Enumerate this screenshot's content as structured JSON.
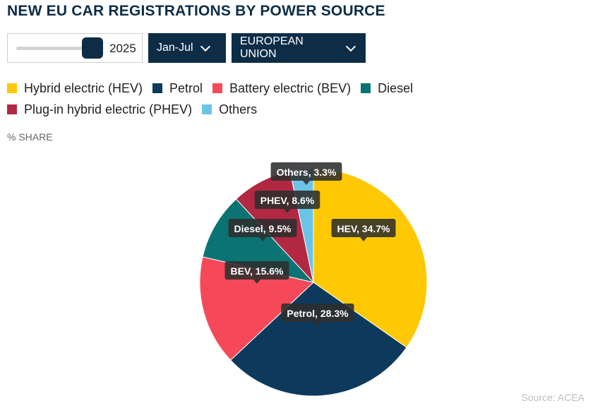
{
  "title": "NEW EU CAR REGISTRATIONS BY POWER SOURCE",
  "controls": {
    "year": "2025",
    "period": "Jan-Jul",
    "region": "EUROPEAN UNION"
  },
  "unit_label": "% SHARE",
  "source": "Source:  ACEA",
  "chart_data": {
    "type": "pie",
    "legend_position": "top",
    "slices": [
      {
        "legend": "Hybrid electric (HEV)",
        "label": "HEV, 34.7%",
        "value": 34.7,
        "color": "#fec804"
      },
      {
        "legend": "Petrol",
        "label": "Petrol, 28.3%",
        "value": 28.3,
        "color": "#0d3a5c"
      },
      {
        "legend": "Battery electric (BEV)",
        "label": "BEV, 15.6%",
        "value": 15.6,
        "color": "#f5495a"
      },
      {
        "legend": "Diesel",
        "label": "Diesel, 9.5%",
        "value": 9.5,
        "color": "#0b7373"
      },
      {
        "legend": "Plug-in hybrid electric (PHEV)",
        "label": "PHEV, 8.6%",
        "value": 8.6,
        "color": "#b22843"
      },
      {
        "legend": "Others",
        "label": "Others, 3.3%",
        "value": 3.3,
        "color": "#6cc3e8"
      }
    ]
  }
}
